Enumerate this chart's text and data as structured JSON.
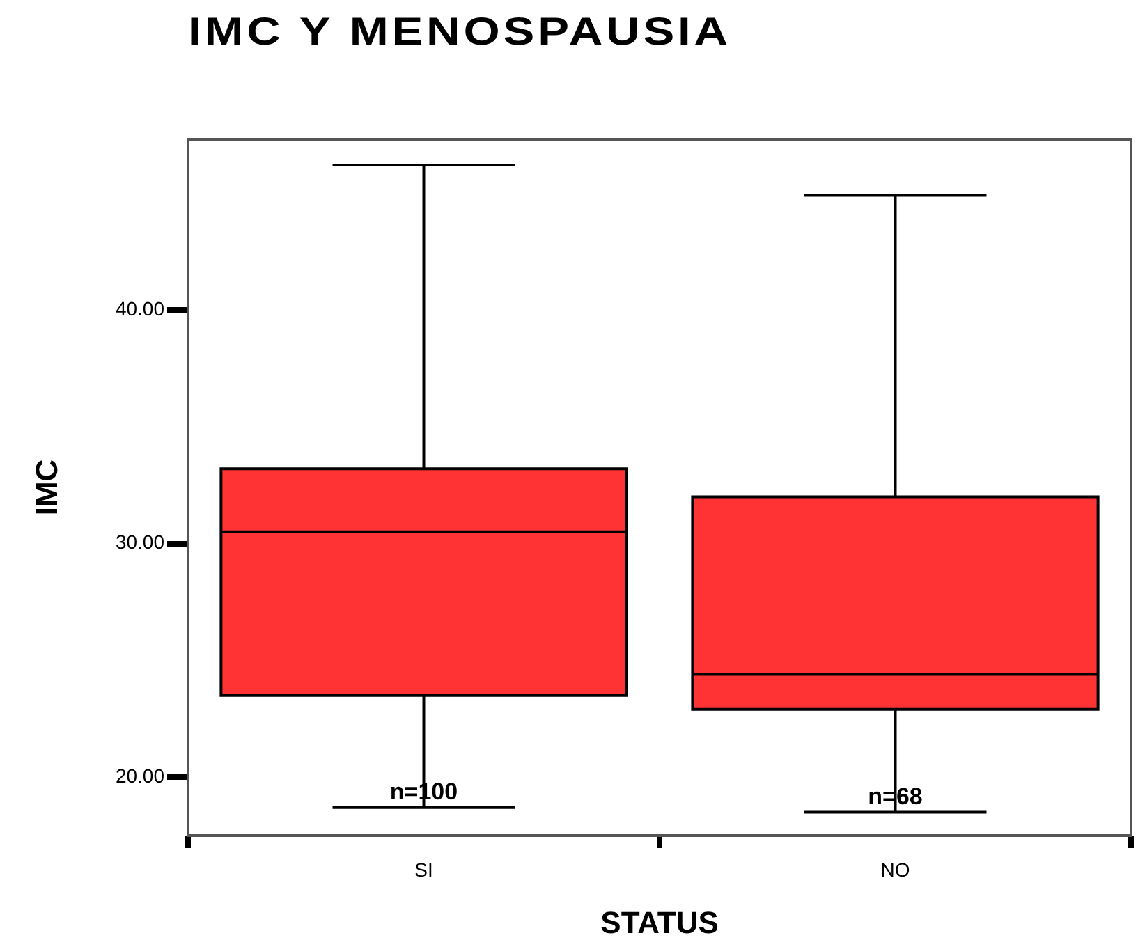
{
  "chart_data": {
    "type": "box",
    "title": "IMC Y MENOSPAUSIA",
    "xlabel": "STATUS",
    "ylabel": "IMC",
    "categories": [
      "SI",
      "NO"
    ],
    "color": "#ff3333",
    "boxes": [
      {
        "low": 18.7,
        "q1": 23.5,
        "median": 30.5,
        "q3": 33.2,
        "high": 46.2
      },
      {
        "low": 18.5,
        "q1": 22.9,
        "median": 24.4,
        "q3": 32.0,
        "high": 44.9
      }
    ],
    "ylim": [
      17.5,
      47.3
    ],
    "yticks": [
      {
        "value": 20,
        "label": "20.00"
      },
      {
        "value": 30,
        "label": "30.00"
      },
      {
        "value": 40,
        "label": "40.00"
      }
    ],
    "grid": false,
    "legend": false,
    "annotations": [
      {
        "text": "n=100",
        "x": "SI",
        "y": 18.7
      },
      {
        "text": "n=68",
        "x": "NO",
        "y": 18.5
      }
    ]
  }
}
